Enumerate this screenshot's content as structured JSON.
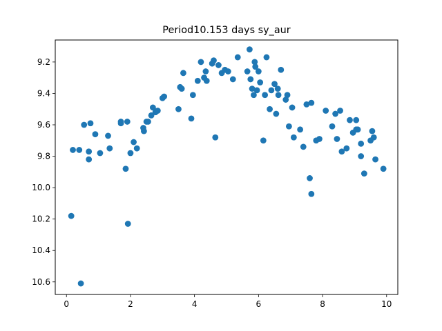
{
  "chart_data": {
    "type": "scatter",
    "title": "Period10.153 days sy_aur",
    "xlabel": "",
    "ylabel": "",
    "xlim": [
      -0.35,
      10.35
    ],
    "ylim": [
      10.68,
      9.06
    ],
    "y_inverted": true,
    "grid": false,
    "legend": "none",
    "marker_color": "#1f77b4",
    "x_ticks": [
      0,
      2,
      4,
      6,
      8,
      10
    ],
    "x_tick_labels": [
      "0",
      "2",
      "4",
      "6",
      "8",
      "10"
    ],
    "y_ticks": [
      9.2,
      9.4,
      9.6,
      9.8,
      10.0,
      10.2,
      10.4,
      10.6
    ],
    "y_tick_labels": [
      "9.2",
      "9.4",
      "9.6",
      "9.8",
      "10.0",
      "10.2",
      "10.4",
      "10.6"
    ],
    "points": [
      [
        0.15,
        10.18
      ],
      [
        0.2,
        9.76
      ],
      [
        0.4,
        9.76
      ],
      [
        0.45,
        10.61
      ],
      [
        0.55,
        9.6
      ],
      [
        0.7,
        9.82
      ],
      [
        0.7,
        9.77
      ],
      [
        0.75,
        9.59
      ],
      [
        0.9,
        9.66
      ],
      [
        1.05,
        9.78
      ],
      [
        1.3,
        9.67
      ],
      [
        1.35,
        9.75
      ],
      [
        1.7,
        9.58
      ],
      [
        1.7,
        9.59
      ],
      [
        1.85,
        9.88
      ],
      [
        1.9,
        9.58
      ],
      [
        1.92,
        10.23
      ],
      [
        2.0,
        9.78
      ],
      [
        2.1,
        9.71
      ],
      [
        2.2,
        9.75
      ],
      [
        2.4,
        9.62
      ],
      [
        2.42,
        9.64
      ],
      [
        2.5,
        9.58
      ],
      [
        2.55,
        9.58
      ],
      [
        2.65,
        9.54
      ],
      [
        2.7,
        9.49
      ],
      [
        2.78,
        9.52
      ],
      [
        2.85,
        9.51
      ],
      [
        3.0,
        9.43
      ],
      [
        3.05,
        9.42
      ],
      [
        3.5,
        9.5
      ],
      [
        3.55,
        9.36
      ],
      [
        3.6,
        9.37
      ],
      [
        3.65,
        9.27
      ],
      [
        3.9,
        9.56
      ],
      [
        3.95,
        9.41
      ],
      [
        4.1,
        9.32
      ],
      [
        4.2,
        9.2
      ],
      [
        4.3,
        9.3
      ],
      [
        4.35,
        9.26
      ],
      [
        4.38,
        9.32
      ],
      [
        4.55,
        9.21
      ],
      [
        4.6,
        9.19
      ],
      [
        4.65,
        9.68
      ],
      [
        4.75,
        9.22
      ],
      [
        4.85,
        9.27
      ],
      [
        4.95,
        9.25
      ],
      [
        5.05,
        9.26
      ],
      [
        5.2,
        9.31
      ],
      [
        5.35,
        9.17
      ],
      [
        5.65,
        9.26
      ],
      [
        5.72,
        9.12
      ],
      [
        5.75,
        9.31
      ],
      [
        5.8,
        9.37
      ],
      [
        5.85,
        9.41
      ],
      [
        5.88,
        9.2
      ],
      [
        5.9,
        9.23
      ],
      [
        5.95,
        9.38
      ],
      [
        6.0,
        9.26
      ],
      [
        6.05,
        9.33
      ],
      [
        6.15,
        9.7
      ],
      [
        6.2,
        9.41
      ],
      [
        6.25,
        9.17
      ],
      [
        6.35,
        9.5
      ],
      [
        6.4,
        9.38
      ],
      [
        6.5,
        9.34
      ],
      [
        6.55,
        9.53
      ],
      [
        6.6,
        9.37
      ],
      [
        6.62,
        9.41
      ],
      [
        6.7,
        9.25
      ],
      [
        6.85,
        9.44
      ],
      [
        6.9,
        9.41
      ],
      [
        6.95,
        9.61
      ],
      [
        7.05,
        9.49
      ],
      [
        7.1,
        9.68
      ],
      [
        7.3,
        9.63
      ],
      [
        7.4,
        9.74
      ],
      [
        7.5,
        9.47
      ],
      [
        7.6,
        9.94
      ],
      [
        7.65,
        10.04
      ],
      [
        7.65,
        9.46
      ],
      [
        7.8,
        9.7
      ],
      [
        7.9,
        9.69
      ],
      [
        8.1,
        9.51
      ],
      [
        8.3,
        9.61
      ],
      [
        8.4,
        9.53
      ],
      [
        8.45,
        9.69
      ],
      [
        8.55,
        9.51
      ],
      [
        8.6,
        9.77
      ],
      [
        8.75,
        9.75
      ],
      [
        8.85,
        9.57
      ],
      [
        8.95,
        9.65
      ],
      [
        9.05,
        9.57
      ],
      [
        9.05,
        9.63
      ],
      [
        9.1,
        9.63
      ],
      [
        9.2,
        9.72
      ],
      [
        9.2,
        9.8
      ],
      [
        9.3,
        9.91
      ],
      [
        9.5,
        9.7
      ],
      [
        9.55,
        9.64
      ],
      [
        9.6,
        9.68
      ],
      [
        9.65,
        9.82
      ],
      [
        9.9,
        9.88
      ]
    ]
  }
}
